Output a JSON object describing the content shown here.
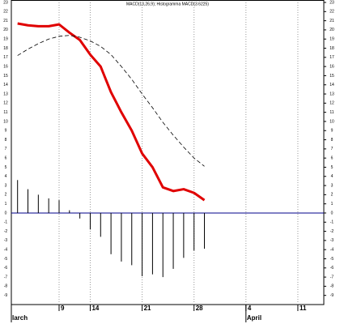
{
  "chart_data": {
    "type": "macd",
    "title": "MACD(13,26,9); Histogramma MACD(3.6225)",
    "x": [
      0,
      1,
      2,
      3,
      4,
      5,
      6,
      7,
      8,
      9,
      10,
      11,
      12,
      13,
      14,
      15,
      16,
      17,
      18
    ],
    "series": [
      {
        "kind": "line",
        "color": "#e00000",
        "values": [
          20.7,
          20.5,
          20.4,
          20.4,
          20.6,
          19.7,
          18.9,
          17.3,
          16.0,
          13.2,
          11.0,
          9.0,
          6.5,
          5.0,
          2.8,
          2.4,
          2.6,
          2.2,
          1.4
        ]
      },
      {
        "kind": "dashed",
        "color": "#000000",
        "values": [
          17.2,
          17.9,
          18.5,
          19.0,
          19.3,
          19.4,
          19.2,
          18.8,
          18.2,
          17.3,
          16.0,
          14.6,
          13.0,
          11.5,
          9.9,
          8.5,
          7.2,
          6.0,
          5.1
        ]
      },
      {
        "kind": "histogram",
        "color": "#000000",
        "values": [
          3.6,
          2.6,
          2.0,
          1.6,
          1.4,
          0.3,
          -0.6,
          -1.8,
          -2.6,
          -4.5,
          -5.3,
          -5.7,
          -6.9,
          -6.7,
          -7.0,
          -6.1,
          -4.9,
          -4.1,
          -3.9
        ]
      }
    ],
    "zero_line_color": "#00008b",
    "xlim": [
      -0.6,
      29.5
    ],
    "xticks": [
      {
        "value": 4,
        "label": "9"
      },
      {
        "value": 7,
        "label": "14"
      },
      {
        "value": 12,
        "label": "21"
      },
      {
        "value": 17,
        "label": "28"
      },
      {
        "value": 22,
        "label": "4"
      },
      {
        "value": 27,
        "label": "11"
      }
    ],
    "month_ticks": [
      {
        "value": -0.6,
        "label": "larch"
      },
      {
        "value": 22,
        "label": "April"
      }
    ],
    "ylim": [
      -10,
      23
    ],
    "yticks": [
      -9,
      -8,
      -7,
      -6,
      -5,
      -4,
      -3,
      -2,
      -1,
      0,
      1,
      2,
      3,
      4,
      5,
      6,
      7,
      8,
      9,
      10,
      11,
      12,
      13,
      14,
      15,
      16,
      17,
      18,
      19,
      20,
      21,
      22,
      23
    ],
    "grid": true
  }
}
